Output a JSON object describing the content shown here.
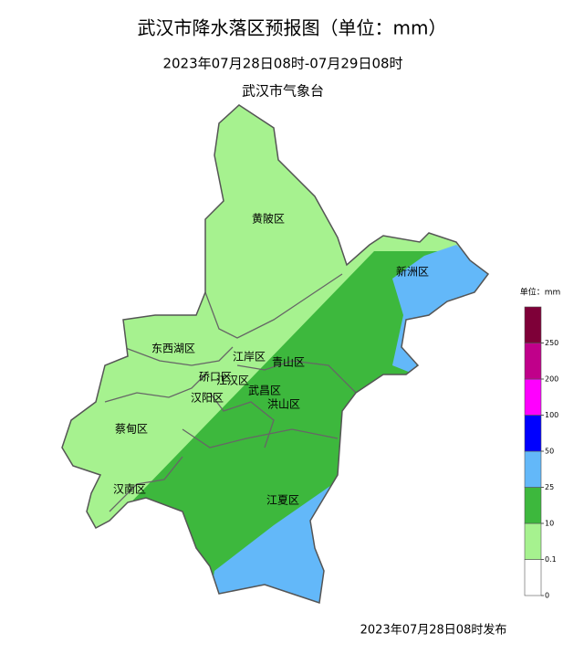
{
  "header": {
    "title": "武汉市降水落区预报图（单位：mm）",
    "period": "2023年07月28日08时-07月29日08时",
    "agency": "武汉市气象台"
  },
  "districts": [
    "黄陂区",
    "新洲区",
    "东西湖区",
    "江岸区",
    "青山区",
    "硚口区",
    "江汉区",
    "汉阳区",
    "武昌区",
    "洪山区",
    "蔡甸区",
    "汉南区",
    "江夏区"
  ],
  "legend": {
    "title": "单位：mm",
    "ticks": [
      0,
      0.1,
      10,
      25,
      50,
      100,
      200,
      250
    ],
    "colors": [
      "#ffffff",
      "#a6f28f",
      "#3db83d",
      "#63b8f9",
      "#0000fe",
      "#fe00fe",
      "#c0008a",
      "#7e0038"
    ]
  },
  "footer": "2023年07月28日08时发布"
}
